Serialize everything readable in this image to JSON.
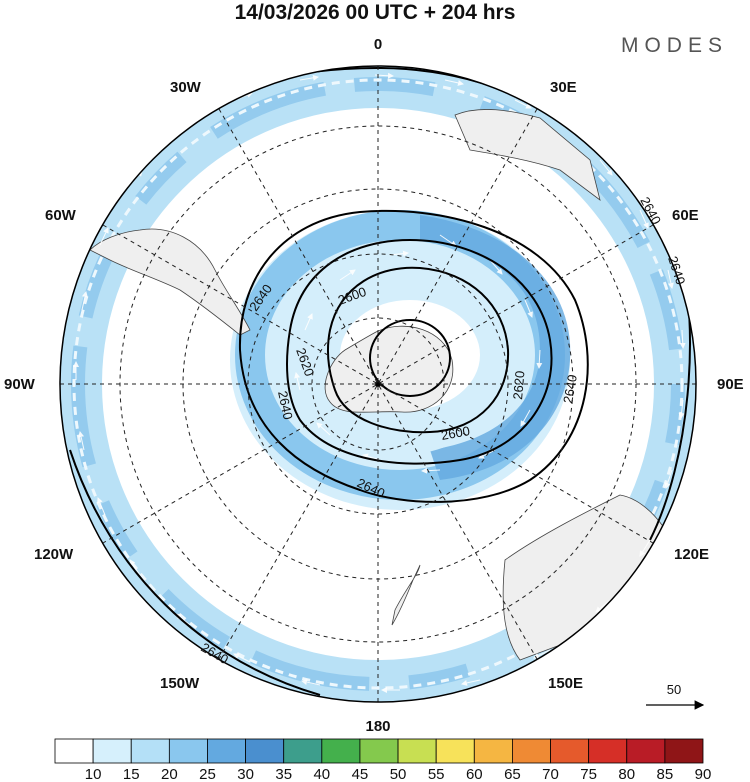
{
  "header": {
    "title": "14/03/2026  00 UTC  + 204 hrs",
    "brand": "MODES"
  },
  "map": {
    "projection": "south-polar-stereographic",
    "longitude_labels": {
      "top": "0",
      "bottom": "180",
      "left": "90W",
      "right": "90E",
      "upper_left_1": "30W",
      "upper_left_2": "60W",
      "upper_right_1": "30E",
      "upper_right_2": "60E",
      "lower_left_1": "120W",
      "lower_left_2": "150W",
      "lower_right_1": "120E",
      "lower_right_2": "150E"
    },
    "contour_labels": [
      "2640",
      "2640",
      "2640",
      "2600",
      "2620",
      "2620",
      "2640",
      "2600",
      "2640",
      "2640",
      "2640"
    ],
    "wind_vector_reference": "50"
  },
  "colorbar": {
    "ticks": [
      "10",
      "15",
      "20",
      "25",
      "30",
      "35",
      "40",
      "45",
      "50",
      "55",
      "60",
      "65",
      "70",
      "75",
      "80",
      "85",
      "90"
    ],
    "colors": [
      "#ffffff",
      "#d6f0fc",
      "#b4e0f7",
      "#8ac7ee",
      "#63a9e0",
      "#4a8fcf",
      "#3d9e8c",
      "#44b04c",
      "#84c94d",
      "#c8df52",
      "#f7e25a",
      "#f5b642",
      "#ef8a34",
      "#e55a2c",
      "#d62f27",
      "#b91c26",
      "#8f1517"
    ]
  }
}
